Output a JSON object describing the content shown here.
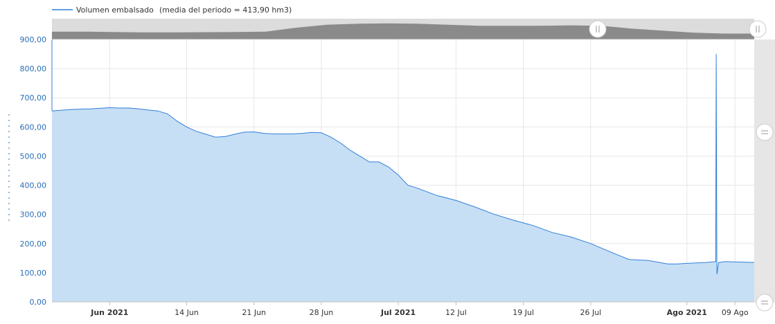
{
  "legend": {
    "label": "Volumen embalsado",
    "summary": "(media del periodo = 413,90 hm3)"
  },
  "chart_data": {
    "type": "area",
    "ylabel": "",
    "ylim": [
      0,
      900
    ],
    "yticks": [
      "0,00",
      "100,00",
      "200,00",
      "300,00",
      "400,00",
      "500,00",
      "600,00",
      "700,00",
      "800,00",
      "900,00"
    ],
    "xticks": [
      {
        "label": "Jun 2021",
        "day": 6,
        "major": true
      },
      {
        "label": "14 Jun",
        "day": 14,
        "major": false
      },
      {
        "label": "21 Jun",
        "day": 21,
        "major": false
      },
      {
        "label": "28 Jun",
        "day": 28,
        "major": false
      },
      {
        "label": "Jul 2021",
        "day": 36,
        "major": true
      },
      {
        "label": "12 Jul",
        "day": 42,
        "major": false
      },
      {
        "label": "19 Jul",
        "day": 49,
        "major": false
      },
      {
        "label": "26 Jul",
        "day": 56,
        "major": false
      },
      {
        "label": "Ago 2021",
        "day": 66,
        "major": true
      },
      {
        "label": "09 Ago",
        "day": 71,
        "major": false
      }
    ],
    "series": [
      {
        "name": "Volumen embalsado",
        "color": "#2f7ed8",
        "fill": "#c7dff5",
        "x": [
          0,
          2,
          4,
          6,
          7,
          8,
          9,
          10,
          11,
          12,
          13,
          14,
          15,
          16,
          17,
          18,
          19,
          20,
          21,
          22,
          23,
          24,
          25,
          26,
          27,
          28,
          29,
          30,
          31,
          32,
          33,
          34,
          35,
          36,
          37,
          38,
          40,
          42,
          44,
          46,
          48,
          50,
          52,
          54,
          56,
          58,
          60,
          62,
          64,
          65,
          66,
          68,
          69,
          69.05,
          69.12,
          69.3,
          70,
          72,
          73
        ],
        "values": [
          655,
          660,
          662,
          666,
          665,
          665,
          662,
          658,
          655,
          645,
          620,
          600,
          585,
          575,
          565,
          567,
          575,
          582,
          583,
          578,
          576,
          576,
          576,
          578,
          581,
          580,
          565,
          545,
          520,
          500,
          480,
          480,
          462,
          435,
          400,
          390,
          365,
          348,
          325,
          300,
          280,
          262,
          238,
          222,
          200,
          172,
          145,
          142,
          130,
          130,
          132,
          135,
          138,
          850,
          95,
          135,
          138,
          136,
          135
        ]
      }
    ],
    "navigator": {
      "values": [
        920,
        920,
        918,
        916,
        916,
        917,
        918,
        920,
        940,
        955,
        960,
        962,
        960,
        955,
        950,
        950,
        950,
        952,
        950,
        935,
        925,
        915,
        910,
        910
      ]
    }
  }
}
